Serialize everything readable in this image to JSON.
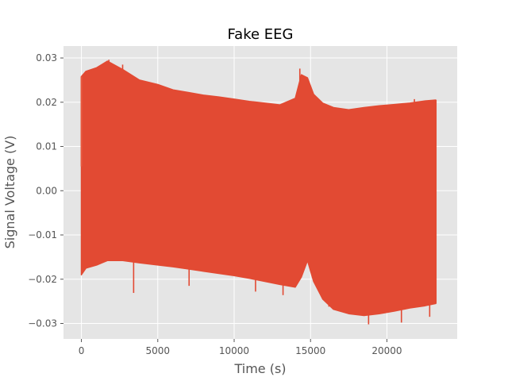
{
  "chart_data": {
    "type": "area",
    "title": "Fake EEG",
    "xlabel": "Time (s)",
    "ylabel": "Signal Voltage (V)",
    "xlim": [
      -1171,
      24601
    ],
    "ylim": [
      -0.0335,
      0.0327
    ],
    "x_ticks": [
      0,
      5000,
      10000,
      15000,
      20000
    ],
    "y_ticks": [
      -0.03,
      -0.02,
      -0.01,
      0.0,
      0.01,
      0.02,
      0.03
    ],
    "x_tick_labels": [
      "0",
      "5000",
      "10000",
      "15000",
      "20000"
    ],
    "y_tick_labels": [
      "−0.03",
      "−0.02",
      "−0.01",
      "0.00",
      "0.01",
      "0.02",
      "0.03"
    ],
    "grid": true,
    "style": "ggplot",
    "series": [
      {
        "color": "#E24A33",
        "envelope": {
          "x": [
            0,
            300,
            1000,
            1700,
            2700,
            3800,
            5000,
            6000,
            7000,
            8000,
            9000,
            10000,
            11000,
            12000,
            13000,
            14000,
            14400,
            14800,
            15200,
            15800,
            16500,
            17500,
            18500,
            19500,
            20500,
            21500,
            22500,
            23200
          ],
          "upper": [
            0.0258,
            0.027,
            0.0278,
            0.0293,
            0.0274,
            0.025,
            0.024,
            0.0228,
            0.0222,
            0.0216,
            0.0212,
            0.0207,
            0.0202,
            0.0198,
            0.0194,
            0.0209,
            0.0262,
            0.0255,
            0.0218,
            0.0198,
            0.0188,
            0.0183,
            0.0188,
            0.0192,
            0.0195,
            0.0198,
            0.0203,
            0.0205
          ],
          "lower": [
            -0.019,
            -0.0175,
            -0.0168,
            -0.0158,
            -0.0158,
            -0.0163,
            -0.0168,
            -0.0172,
            -0.0177,
            -0.0182,
            -0.0187,
            -0.0192,
            -0.0198,
            -0.0205,
            -0.0212,
            -0.0218,
            -0.0195,
            -0.0158,
            -0.0205,
            -0.0245,
            -0.0268,
            -0.0278,
            -0.0282,
            -0.0278,
            -0.0272,
            -0.0265,
            -0.026,
            -0.0255
          ]
        },
        "spikes": [
          {
            "x": 3420,
            "y": -0.0231
          },
          {
            "x": 7050,
            "y": -0.0215
          },
          {
            "x": 11400,
            "y": -0.0228
          },
          {
            "x": 13200,
            "y": -0.0236
          },
          {
            "x": 16200,
            "y": -0.0262
          },
          {
            "x": 18800,
            "y": -0.0302
          },
          {
            "x": 20950,
            "y": -0.0298
          },
          {
            "x": 22800,
            "y": -0.0285
          },
          {
            "x": 1800,
            "y": 0.0296
          },
          {
            "x": 2700,
            "y": 0.0285
          },
          {
            "x": 14300,
            "y": 0.0276
          },
          {
            "x": 21800,
            "y": 0.0207
          }
        ]
      }
    ]
  }
}
